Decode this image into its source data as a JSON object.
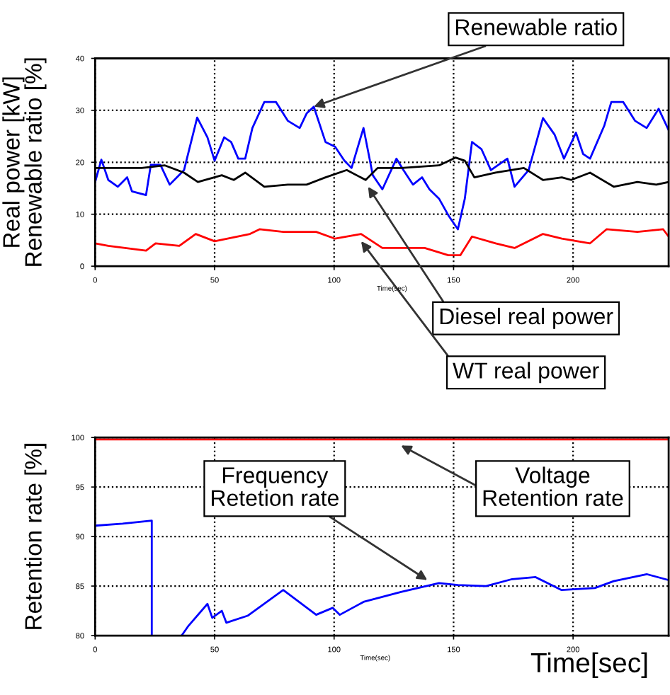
{
  "chart_data": [
    {
      "type": "line",
      "ylabel": "Real power [kW]\nRenewable ratio [%]",
      "xlabel": "Time(sec)",
      "xlim": [
        0,
        240
      ],
      "xticks": [
        0,
        50,
        100,
        150,
        200
      ],
      "ylim": [
        0,
        40
      ],
      "yticks": [
        0,
        10,
        20,
        30,
        40
      ],
      "grid": true,
      "line_style": "solid",
      "annotations": [
        {
          "text": "Renewable ratio",
          "x": 91.5,
          "y": 30.7
        },
        {
          "text": "Diesel real power",
          "x": 114.2,
          "y": 15.3
        },
        {
          "text": "WT real power",
          "x": 111.3,
          "y": 4.8
        }
      ],
      "series": [
        {
          "color": "#0000ff",
          "x": [
            0,
            2.6,
            5.5,
            9.5,
            13.4,
            15.4,
            21.3,
            23.3,
            27.3,
            31.2,
            37.2,
            42.7,
            47,
            50,
            54,
            56.9,
            59.9,
            62.8,
            65.8,
            70.8,
            75.7,
            80.6,
            85.6,
            88.5,
            91.5,
            96.4,
            100.4,
            104.3,
            107.3,
            112.3,
            116.2,
            120.2,
            126.1,
            129,
            133,
            136.8,
            139.9,
            143.9,
            147.8,
            151.8,
            154.7,
            157.7,
            161.7,
            165.6,
            172.5,
            175.5,
            181.4,
            187.4,
            192.3,
            196.2,
            201.2,
            204.2,
            207.1,
            213.1,
            216,
            221,
            225.9,
            230.8,
            235.8,
            240
          ],
          "values": [
            16.2,
            20.5,
            16.6,
            15.3,
            17.1,
            14.4,
            13.7,
            19.5,
            19.5,
            15.7,
            18.5,
            28.6,
            24.8,
            20.3,
            24.8,
            23.9,
            20.7,
            20.7,
            26.6,
            31.6,
            31.6,
            28,
            26.6,
            29.4,
            30.7,
            23.9,
            23,
            20.3,
            18.9,
            26.6,
            17.5,
            14.8,
            20.7,
            18.5,
            15.7,
            17.1,
            14.8,
            13,
            9.8,
            7.1,
            13,
            23.9,
            22.5,
            18.5,
            20.7,
            15.3,
            18.5,
            28.5,
            25.3,
            20.7,
            25.7,
            21.6,
            20.7,
            27.1,
            31.6,
            31.6,
            28,
            26.6,
            30.3,
            26.2
          ]
        },
        {
          "color": "#000000",
          "x": [
            0,
            19.4,
            29.2,
            37.2,
            43,
            53,
            58,
            62.8,
            70.8,
            80.6,
            88.5,
            96.4,
            105.3,
            113.2,
            118.2,
            128,
            143.9,
            150.8,
            154.7,
            158.7,
            167.6,
            179.4,
            187.4,
            195.3,
            199.2,
            207.1,
            217,
            226.9,
            234.8,
            240
          ],
          "values": [
            18.9,
            18.9,
            19.4,
            18,
            16.2,
            17.5,
            16.6,
            18,
            15.3,
            15.7,
            15.7,
            17.1,
            18.5,
            16.6,
            18.9,
            18.9,
            19.4,
            20.9,
            20.3,
            17.1,
            18,
            18.9,
            16.6,
            17.1,
            16.6,
            18,
            15.3,
            16.2,
            15.7,
            16.2
          ]
        },
        {
          "color": "#ff0000",
          "x": [
            0,
            5.5,
            21.3,
            25.3,
            35.2,
            42.1,
            50,
            64.8,
            68.8,
            78.7,
            92.5,
            100.4,
            111.3,
            120.2,
            137.9,
            147.8,
            152.8,
            157.7,
            167.6,
            175.5,
            187.4,
            195.3,
            207.1,
            214,
            226.9,
            237.7,
            240
          ],
          "values": [
            4.4,
            3.9,
            3,
            4.4,
            3.9,
            6.2,
            4.8,
            6.2,
            7.1,
            6.6,
            6.6,
            5.3,
            6.2,
            3.5,
            3.5,
            2.1,
            2.1,
            5.7,
            4.4,
            3.5,
            6.2,
            5.3,
            4.4,
            7.1,
            6.6,
            7.1,
            5.7
          ]
        }
      ]
    },
    {
      "type": "line",
      "ylabel": "Retention rate [%]",
      "xlabel": "Time(sec)",
      "xlim": [
        0,
        240
      ],
      "xticks": [
        0,
        50,
        100,
        150,
        200
      ],
      "ylim": [
        80,
        100
      ],
      "yticks": [
        80,
        85,
        90,
        95,
        100
      ],
      "grid": true,
      "line_style": "solid",
      "annotations": [
        {
          "text": "Frequency\nRetetion rate",
          "x": 139,
          "y": 85.6
        },
        {
          "text": "Voltage\nRetention rate",
          "x": 128,
          "y": 99.2
        },
        "Time[sec]"
      ],
      "series": [
        {
          "color": "#0000ff",
          "x": [
            0,
            11.5,
            23.7,
            23.7,
            30,
            36.2,
            39.1,
            47,
            49,
            53,
            54.9,
            63.8,
            78.7,
            92.5,
            99.4,
            102.4,
            112.3,
            128,
            143.9,
            151.8,
            163.6,
            174.5,
            184.3,
            195.2,
            209.1,
            217,
            230.8,
            240
          ],
          "values": [
            91.1,
            91.3,
            91.6,
            80,
            null,
            80,
            81,
            83.2,
            81.8,
            82.5,
            81.3,
            82,
            84.6,
            82.1,
            82.8,
            82.1,
            83.4,
            84.4,
            85.3,
            85.1,
            85,
            85.7,
            85.9,
            84.6,
            84.8,
            85.5,
            86.2,
            85.6
          ]
        },
        {
          "color": "#ff0000",
          "x": [
            0,
            60,
            120,
            180,
            240
          ],
          "values": [
            99.8,
            99.8,
            99.8,
            99.8,
            99.8
          ]
        }
      ]
    }
  ]
}
